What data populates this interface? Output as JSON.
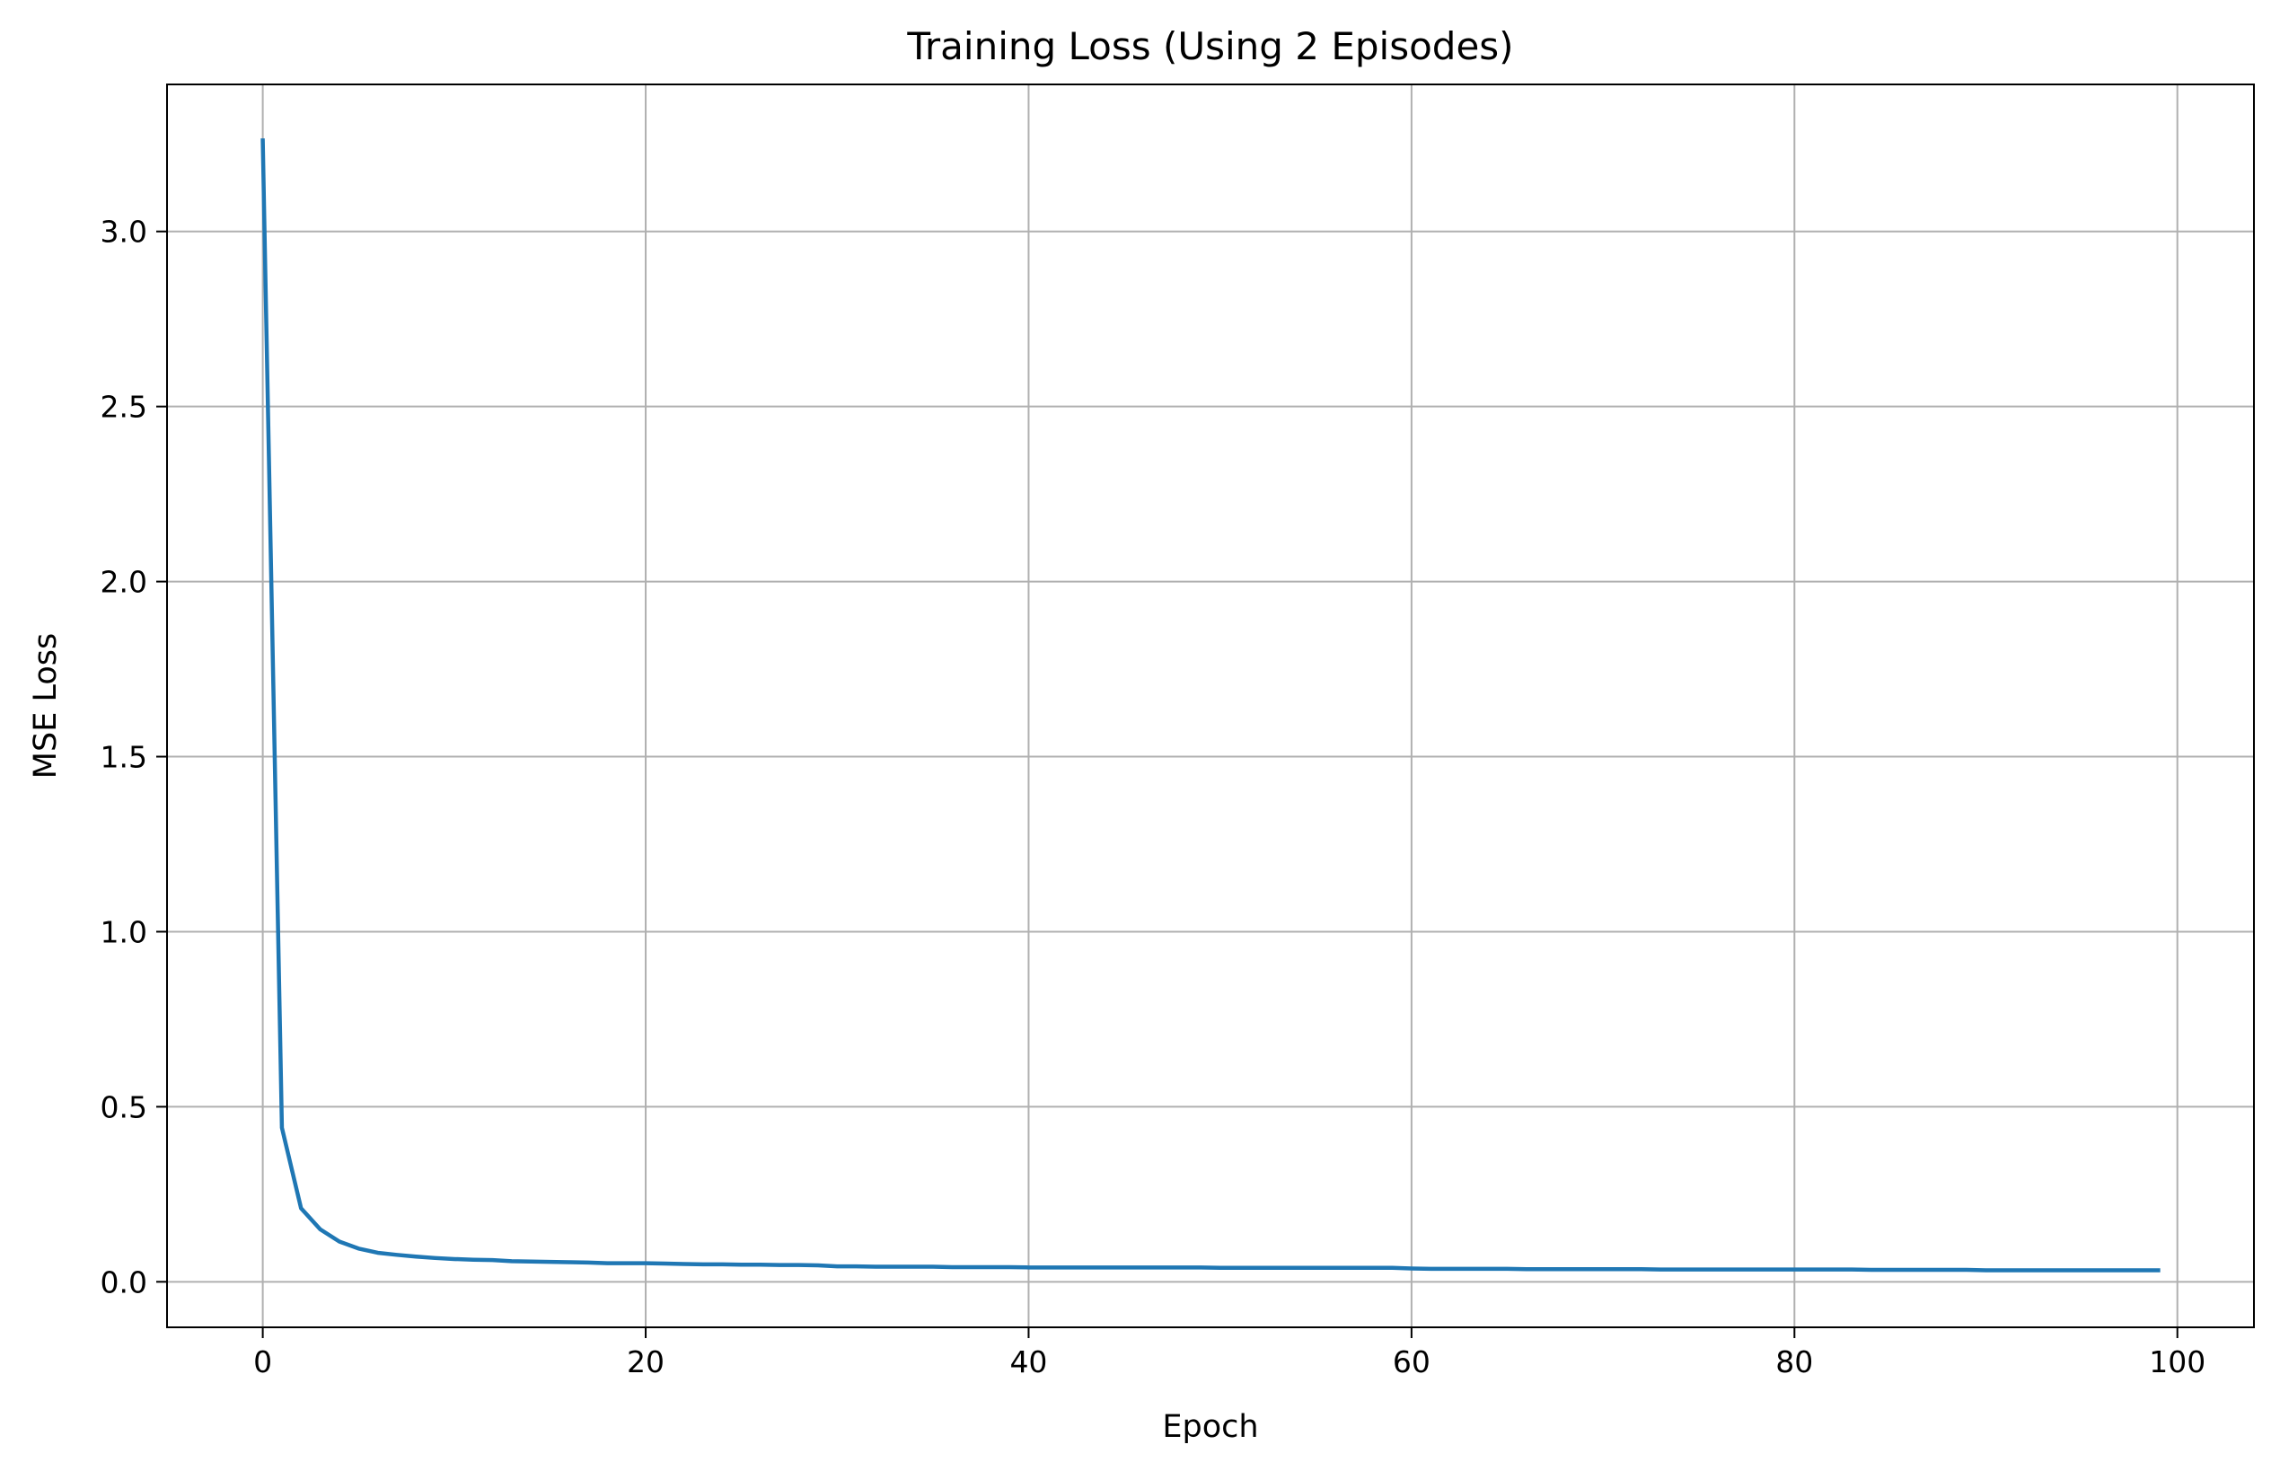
{
  "chart_data": {
    "type": "line",
    "title": "Training Loss (Using 2 Episodes)",
    "xlabel": "Epoch",
    "ylabel": "MSE Loss",
    "xlim": [
      -5,
      104
    ],
    "ylim": [
      -0.13,
      3.42
    ],
    "xticks": [
      0,
      20,
      40,
      60,
      80,
      100
    ],
    "xtick_labels": [
      "0",
      "20",
      "40",
      "60",
      "80",
      "100"
    ],
    "yticks": [
      0.0,
      0.5,
      1.0,
      1.5,
      2.0,
      2.5,
      3.0
    ],
    "ytick_labels": [
      "0.0",
      "0.5",
      "1.0",
      "1.5",
      "2.0",
      "2.5",
      "3.0"
    ],
    "grid": true,
    "line_color": "#1f77b4",
    "grid_color": "#b0b0b0",
    "series": [
      {
        "x": [
          0,
          1,
          2,
          3,
          4,
          5,
          6,
          7,
          8,
          9,
          10,
          11,
          12,
          13,
          14,
          15,
          16,
          17,
          18,
          19,
          20,
          21,
          22,
          23,
          24,
          25,
          26,
          27,
          28,
          29,
          30,
          31,
          32,
          33,
          34,
          35,
          36,
          37,
          38,
          39,
          40,
          41,
          42,
          43,
          44,
          45,
          46,
          47,
          48,
          49,
          50,
          51,
          52,
          53,
          54,
          55,
          56,
          57,
          58,
          59,
          60,
          61,
          62,
          63,
          64,
          65,
          66,
          67,
          68,
          69,
          70,
          71,
          72,
          73,
          74,
          75,
          76,
          77,
          78,
          79,
          80,
          81,
          82,
          83,
          84,
          85,
          86,
          87,
          88,
          89,
          90,
          91,
          92,
          93,
          94,
          95,
          96,
          97,
          98,
          99
        ],
        "values": [
          3.26,
          0.44,
          0.21,
          0.15,
          0.115,
          0.095,
          0.083,
          0.077,
          0.072,
          0.068,
          0.065,
          0.063,
          0.062,
          0.059,
          0.058,
          0.057,
          0.056,
          0.055,
          0.053,
          0.053,
          0.053,
          0.052,
          0.051,
          0.05,
          0.05,
          0.049,
          0.049,
          0.048,
          0.048,
          0.047,
          0.044,
          0.044,
          0.043,
          0.043,
          0.043,
          0.043,
          0.042,
          0.042,
          0.042,
          0.042,
          0.041,
          0.041,
          0.041,
          0.041,
          0.041,
          0.041,
          0.041,
          0.041,
          0.041,
          0.041,
          0.04,
          0.04,
          0.04,
          0.04,
          0.04,
          0.04,
          0.04,
          0.04,
          0.04,
          0.04,
          0.038,
          0.037,
          0.037,
          0.037,
          0.037,
          0.037,
          0.036,
          0.036,
          0.036,
          0.036,
          0.036,
          0.036,
          0.036,
          0.035,
          0.035,
          0.035,
          0.035,
          0.035,
          0.035,
          0.035,
          0.035,
          0.035,
          0.035,
          0.035,
          0.034,
          0.034,
          0.034,
          0.034,
          0.034,
          0.034,
          0.033,
          0.033,
          0.033,
          0.033,
          0.033,
          0.033,
          0.033,
          0.033,
          0.033,
          0.033
        ]
      }
    ]
  }
}
